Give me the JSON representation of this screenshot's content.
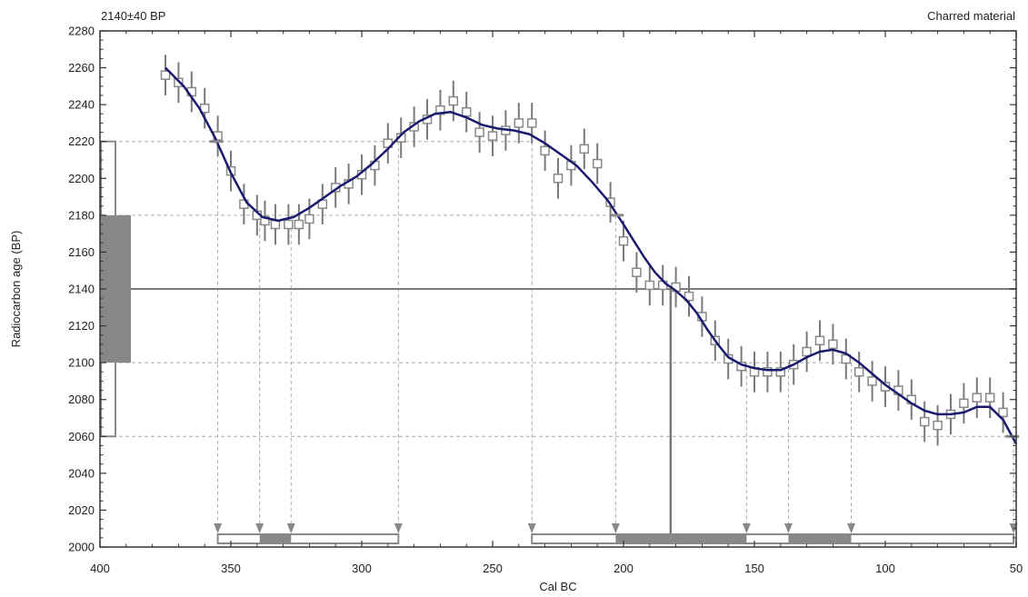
{
  "top_left_label": "2140±40 BP",
  "top_right_label": "Charred material",
  "chart_data": {
    "type": "line",
    "xlabel": "Cal BC",
    "ylabel": "Radiocarbon age (BP)",
    "xlim": [
      400,
      50
    ],
    "ylim": [
      2000,
      2280
    ],
    "x_ticks": [
      "400",
      "350",
      "300",
      "250",
      "200",
      "150",
      "100",
      "50"
    ],
    "y_ticks": [
      "2000",
      "2020",
      "2040",
      "2060",
      "2080",
      "2100",
      "2120",
      "2140",
      "2160",
      "2180",
      "2200",
      "2220",
      "2240",
      "2260",
      "2280"
    ],
    "measurement": {
      "age": 2140,
      "error": 40,
      "one_sigma": [
        2100,
        2180
      ],
      "two_sigma": [
        2060,
        2220
      ]
    },
    "calibration_curve": {
      "x": [
        375,
        368,
        362,
        356,
        350,
        344,
        338,
        332,
        326,
        320,
        314,
        308,
        302,
        296,
        290,
        284,
        278,
        272,
        266,
        260,
        254,
        248,
        242,
        236,
        230,
        224,
        218,
        212,
        206,
        200,
        196,
        192,
        188,
        184,
        180,
        176,
        172,
        168,
        164,
        160,
        155,
        150,
        145,
        140,
        135,
        130,
        125,
        120,
        115,
        110,
        105,
        100,
        95,
        90,
        85,
        80,
        75,
        70,
        65,
        60,
        55,
        50
      ],
      "y": [
        2260,
        2250,
        2238,
        2222,
        2203,
        2187,
        2179,
        2177,
        2179,
        2184,
        2190,
        2196,
        2201,
        2208,
        2216,
        2225,
        2231,
        2235,
        2236,
        2233,
        2229,
        2227,
        2226,
        2224,
        2219,
        2213,
        2207,
        2198,
        2188,
        2175,
        2166,
        2157,
        2149,
        2143,
        2139,
        2134,
        2127,
        2118,
        2110,
        2103,
        2099,
        2097,
        2096,
        2096,
        2099,
        2103,
        2106,
        2107,
        2105,
        2100,
        2094,
        2088,
        2083,
        2078,
        2074,
        2072,
        2072,
        2073,
        2076,
        2076,
        2069,
        2056
      ]
    },
    "data_points": [
      {
        "x": 375,
        "y": 2256,
        "err": 11
      },
      {
        "x": 370,
        "y": 2252,
        "err": 11
      },
      {
        "x": 365,
        "y": 2247,
        "err": 11
      },
      {
        "x": 360,
        "y": 2238,
        "err": 11
      },
      {
        "x": 355,
        "y": 2223,
        "err": 11
      },
      {
        "x": 350,
        "y": 2204,
        "err": 11
      },
      {
        "x": 345,
        "y": 2186,
        "err": 11
      },
      {
        "x": 340,
        "y": 2180,
        "err": 11
      },
      {
        "x": 337,
        "y": 2177,
        "err": 11
      },
      {
        "x": 333,
        "y": 2175,
        "err": 11
      },
      {
        "x": 328,
        "y": 2175,
        "err": 11
      },
      {
        "x": 324,
        "y": 2175,
        "err": 11
      },
      {
        "x": 320,
        "y": 2178,
        "err": 11
      },
      {
        "x": 315,
        "y": 2186,
        "err": 11
      },
      {
        "x": 310,
        "y": 2195,
        "err": 11
      },
      {
        "x": 305,
        "y": 2197,
        "err": 11
      },
      {
        "x": 300,
        "y": 2202,
        "err": 11
      },
      {
        "x": 295,
        "y": 2207,
        "err": 11
      },
      {
        "x": 290,
        "y": 2219,
        "err": 11
      },
      {
        "x": 285,
        "y": 2222,
        "err": 11
      },
      {
        "x": 280,
        "y": 2228,
        "err": 11
      },
      {
        "x": 275,
        "y": 2232,
        "err": 11
      },
      {
        "x": 270,
        "y": 2237,
        "err": 11
      },
      {
        "x": 265,
        "y": 2242,
        "err": 11
      },
      {
        "x": 260,
        "y": 2236,
        "err": 11
      },
      {
        "x": 255,
        "y": 2225,
        "err": 11
      },
      {
        "x": 250,
        "y": 2223,
        "err": 11
      },
      {
        "x": 245,
        "y": 2226,
        "err": 11
      },
      {
        "x": 240,
        "y": 2230,
        "err": 11
      },
      {
        "x": 235,
        "y": 2230,
        "err": 11
      },
      {
        "x": 230,
        "y": 2215,
        "err": 11
      },
      {
        "x": 225,
        "y": 2200,
        "err": 11
      },
      {
        "x": 220,
        "y": 2207,
        "err": 11
      },
      {
        "x": 215,
        "y": 2216,
        "err": 11
      },
      {
        "x": 210,
        "y": 2208,
        "err": 11
      },
      {
        "x": 205,
        "y": 2187,
        "err": 11
      },
      {
        "x": 200,
        "y": 2166,
        "err": 11
      },
      {
        "x": 195,
        "y": 2149,
        "err": 11
      },
      {
        "x": 190,
        "y": 2142,
        "err": 11
      },
      {
        "x": 185,
        "y": 2142,
        "err": 11
      },
      {
        "x": 180,
        "y": 2141,
        "err": 11
      },
      {
        "x": 175,
        "y": 2136,
        "err": 11
      },
      {
        "x": 170,
        "y": 2125,
        "err": 11
      },
      {
        "x": 165,
        "y": 2112,
        "err": 11
      },
      {
        "x": 160,
        "y": 2102,
        "err": 11
      },
      {
        "x": 155,
        "y": 2098,
        "err": 11
      },
      {
        "x": 150,
        "y": 2095,
        "err": 11
      },
      {
        "x": 145,
        "y": 2095,
        "err": 11
      },
      {
        "x": 140,
        "y": 2095,
        "err": 11
      },
      {
        "x": 135,
        "y": 2099,
        "err": 11
      },
      {
        "x": 130,
        "y": 2106,
        "err": 11
      },
      {
        "x": 125,
        "y": 2112,
        "err": 11
      },
      {
        "x": 120,
        "y": 2110,
        "err": 11
      },
      {
        "x": 115,
        "y": 2102,
        "err": 11
      },
      {
        "x": 110,
        "y": 2095,
        "err": 11
      },
      {
        "x": 105,
        "y": 2090,
        "err": 11
      },
      {
        "x": 100,
        "y": 2087,
        "err": 11
      },
      {
        "x": 95,
        "y": 2085,
        "err": 11
      },
      {
        "x": 90,
        "y": 2080,
        "err": 11
      },
      {
        "x": 85,
        "y": 2068,
        "err": 11
      },
      {
        "x": 80,
        "y": 2066,
        "err": 11
      },
      {
        "x": 75,
        "y": 2072,
        "err": 11
      },
      {
        "x": 70,
        "y": 2078,
        "err": 11
      },
      {
        "x": 65,
        "y": 2081,
        "err": 11
      },
      {
        "x": 60,
        "y": 2081,
        "err": 11
      },
      {
        "x": 55,
        "y": 2073,
        "err": 11
      }
    ],
    "intercepts": {
      "two_sigma_high": {
        "y": 2220,
        "x": [
          355,
          286,
          235
        ]
      },
      "one_sigma_high": {
        "y": 2180,
        "x": [
          339,
          327,
          203
        ]
      },
      "one_sigma_low": {
        "y": 2100,
        "x": [
          153,
          137,
          113
        ]
      },
      "two_sigma_low": {
        "y": 2060,
        "x": [
          51
        ]
      }
    },
    "median": 182,
    "range_2sigma": [
      [
        355,
        286
      ],
      [
        235,
        51
      ]
    ],
    "range_1sigma": [
      [
        339,
        327
      ],
      [
        203,
        153
      ],
      [
        137,
        113
      ]
    ]
  }
}
